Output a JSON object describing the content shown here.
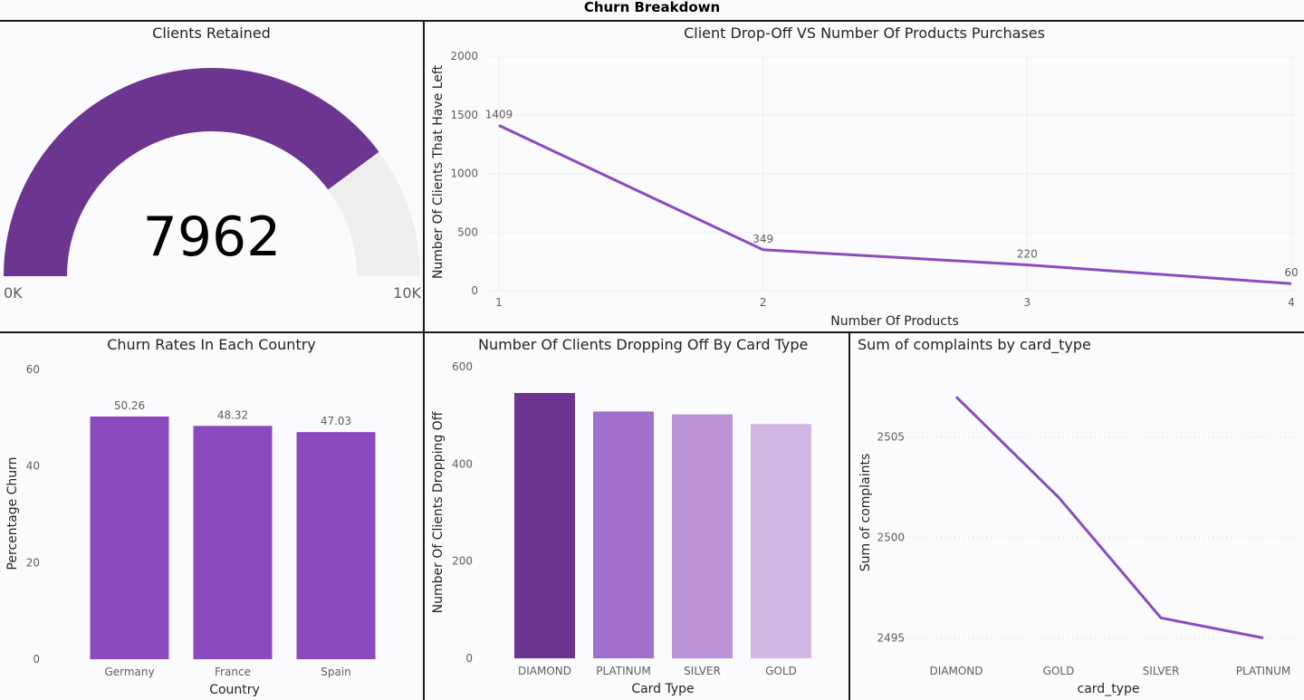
{
  "page": {
    "title": "Churn Breakdown"
  },
  "chart_data": [
    {
      "id": "gauge",
      "type": "gauge",
      "title": "Clients Retained",
      "value": 7962,
      "value_label": "7962",
      "min": 0,
      "max": 10000,
      "min_label": "0K",
      "max_label": "10K",
      "colors": {
        "fill": "#6b3590",
        "track": "#f1efee"
      }
    },
    {
      "id": "line1",
      "type": "line",
      "title": "Client Drop-Off VS Number Of Products Purchases",
      "xlabel": "Number Of Products",
      "ylabel": "Number Of Clients That Have Left",
      "x": [
        1,
        2,
        3,
        4
      ],
      "x_tick_labels": [
        "1",
        "2",
        "3",
        "4"
      ],
      "values": [
        1409,
        349,
        220,
        60
      ],
      "data_labels": [
        "1409",
        "349",
        "220",
        "60"
      ],
      "ylim": [
        0,
        2000
      ],
      "y_ticks": [
        0,
        500,
        1000,
        1500,
        2000
      ],
      "y_tick_labels": [
        "0",
        "500",
        "1000",
        "1500",
        "2000"
      ],
      "grid": true,
      "colors": {
        "line": "#8b4bbf"
      }
    },
    {
      "id": "bar1",
      "type": "bar",
      "title": "Churn Rates In Each Country",
      "xlabel": "Country",
      "ylabel": "Percentage Churn",
      "categories": [
        "Germany",
        "France",
        "Spain"
      ],
      "values": [
        50.26,
        48.32,
        47.03
      ],
      "data_labels": [
        "50.26",
        "48.32",
        "47.03"
      ],
      "ylim": [
        0,
        60
      ],
      "y_ticks": [
        0,
        20,
        40,
        60
      ],
      "y_tick_labels": [
        "0",
        "20",
        "40",
        "60"
      ],
      "colors": {
        "bars": [
          "#8b4bbf",
          "#8b4bbf",
          "#8b4bbf"
        ]
      }
    },
    {
      "id": "bar2",
      "type": "bar",
      "title": "Number Of Clients Dropping Off By Card Type",
      "xlabel": "Card Type",
      "ylabel": "Number Of Clients Dropping Off",
      "categories": [
        "DIAMOND",
        "PLATINUM",
        "SILVER",
        "GOLD"
      ],
      "values": [
        546,
        508,
        502,
        482
      ],
      "ylim": [
        0,
        600
      ],
      "y_ticks": [
        0,
        200,
        400,
        600
      ],
      "y_tick_labels": [
        "0",
        "200",
        "400",
        "600"
      ],
      "colors": {
        "bars": [
          "#6b3590",
          "#a06fcc",
          "#bb91d8",
          "#d1b5e4"
        ]
      }
    },
    {
      "id": "line2",
      "type": "line",
      "title": "Sum of complaints by card_type",
      "xlabel": "card_type",
      "ylabel": "Sum of complaints",
      "categories": [
        "DIAMOND",
        "GOLD",
        "SILVER",
        "PLATINUM"
      ],
      "values": [
        2507,
        2502,
        2496,
        2495
      ],
      "ylim": [
        2494.3,
        2508.5
      ],
      "y_ticks": [
        2495,
        2500,
        2505
      ],
      "y_tick_labels": [
        "2495",
        "2500",
        "2505"
      ],
      "grid": true,
      "colors": {
        "line": "#8b4bbf"
      }
    }
  ]
}
